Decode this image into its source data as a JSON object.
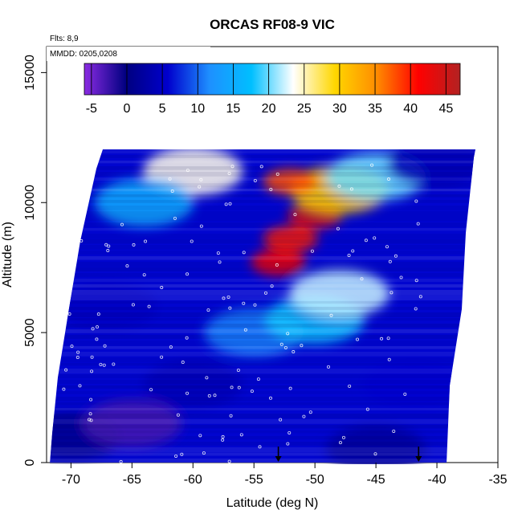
{
  "chart_data": {
    "type": "heatmap",
    "title": "ORCAS RF08-9 VIC",
    "annotations": {
      "flights": "Flts: 8,9",
      "dates": "MMDD: 0205,0208"
    },
    "xlabel": "Latitude (deg N)",
    "ylabel": "Altitude (m)",
    "xlim": [
      -72,
      -35
    ],
    "ylim": [
      0,
      16000
    ],
    "x_ticks": [
      -70,
      -65,
      -60,
      -55,
      -50,
      -45,
      -40,
      -35
    ],
    "y_ticks": [
      0,
      5000,
      10000,
      15000
    ],
    "colorbar": {
      "range": [
        -6,
        47
      ],
      "ticks": [
        -5,
        0,
        5,
        10,
        15,
        20,
        25,
        30,
        35,
        40,
        45
      ],
      "colors": [
        "#8a2be2",
        "#000080",
        "#0000cd",
        "#1e90ff",
        "#00bfff",
        "#ffffff",
        "#ffd700",
        "#ff8c00",
        "#ff0000",
        "#b22222"
      ]
    },
    "arrows_at_latitude": [
      -53,
      -41.5
    ],
    "field_samples": [
      {
        "lat": -70,
        "alt": 1000,
        "value": 1
      },
      {
        "lat": -65,
        "alt": 1500,
        "value": -3
      },
      {
        "lat": -60,
        "alt": 3000,
        "value": 4
      },
      {
        "lat": -55,
        "alt": 5000,
        "value": 11
      },
      {
        "lat": -50,
        "alt": 5500,
        "value": 18
      },
      {
        "lat": -48,
        "alt": 6500,
        "value": 22
      },
      {
        "lat": -53,
        "alt": 7700,
        "value": 42
      },
      {
        "lat": -52,
        "alt": 8600,
        "value": 40
      },
      {
        "lat": -50,
        "alt": 9500,
        "value": 44
      },
      {
        "lat": -48,
        "alt": 10500,
        "value": 30
      },
      {
        "lat": -52,
        "alt": 10800,
        "value": 38
      },
      {
        "lat": -60,
        "alt": 11200,
        "value": 24
      },
      {
        "lat": -64,
        "alt": 10000,
        "value": 15
      },
      {
        "lat": -45,
        "alt": 11000,
        "value": 20
      },
      {
        "lat": -40,
        "alt": 11500,
        "value": 4
      },
      {
        "lat": -42,
        "alt": 3000,
        "value": 6
      },
      {
        "lat": -45,
        "alt": 500,
        "value": 2
      },
      {
        "lat": -67,
        "alt": 6000,
        "value": 5
      }
    ]
  }
}
